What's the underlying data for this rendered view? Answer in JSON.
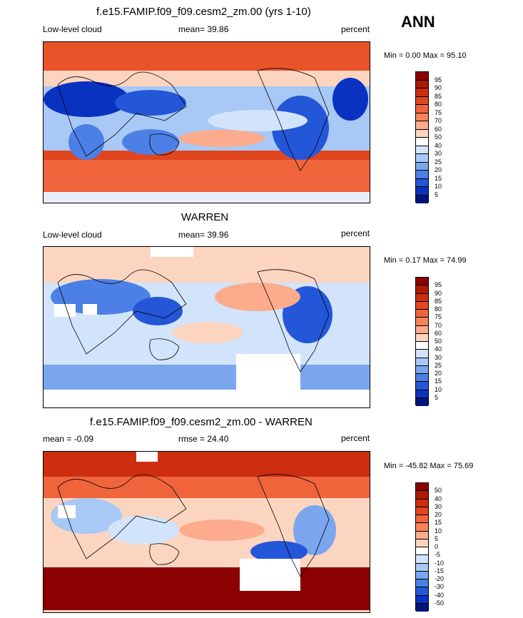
{
  "season": "ANN",
  "panels": [
    {
      "title": "f.e15.FAMIP.f09_f09.cesm2_zm.00 (yrs 1-10)",
      "left_label": "Low-level cloud",
      "center_label": "mean=  39.86",
      "right_label": "percent",
      "minmax": "Min =   0.00 Max =  95.10",
      "colorbar_labels": [
        "95",
        "90",
        "85",
        "80",
        "75",
        "70",
        "60",
        "50",
        "40",
        "30",
        "25",
        "20",
        "15",
        "10",
        "5"
      ],
      "colorbar_colors": [
        "#8b0000",
        "#b01800",
        "#cc2e0f",
        "#e0461f",
        "#f0643c",
        "#f8845c",
        "#fcab8c",
        "#fcd5c0",
        "#ffffff",
        "#d2e4fb",
        "#a8c8f5",
        "#7aa6ee",
        "#4d80e6",
        "#2456d8",
        "#0a32c0",
        "#00147a"
      ]
    },
    {
      "title": "WARREN",
      "left_label": "Low-level cloud",
      "center_label": "mean=  39.96",
      "right_label": "percent",
      "minmax": "Min =   0.17 Max =  74.99",
      "colorbar_labels": [
        "95",
        "90",
        "85",
        "80",
        "75",
        "70",
        "60",
        "50",
        "40",
        "30",
        "25",
        "20",
        "15",
        "10",
        "5"
      ],
      "colorbar_colors": [
        "#8b0000",
        "#b01800",
        "#cc2e0f",
        "#e0461f",
        "#f0643c",
        "#f8845c",
        "#fcab8c",
        "#fcd5c0",
        "#ffffff",
        "#d2e4fb",
        "#a8c8f5",
        "#7aa6ee",
        "#4d80e6",
        "#2456d8",
        "#0a32c0",
        "#00147a"
      ]
    },
    {
      "title": "f.e15.FAMIP.f09_f09.cesm2_zm.00 - WARREN",
      "left_label": "mean =  -0.09",
      "center_label": "rmse =  24.40",
      "right_label": "percent",
      "minmax": "Min = -45.82 Max =  75.69",
      "colorbar_labels": [
        "50",
        "40",
        "30",
        "20",
        "15",
        "10",
        "5",
        "0",
        "-5",
        "-10",
        "-15",
        "-20",
        "-30",
        "-40",
        "-50"
      ],
      "colorbar_colors": [
        "#8b0000",
        "#b01800",
        "#cc2e0f",
        "#e0461f",
        "#f0643c",
        "#f8845c",
        "#fcab8c",
        "#fcd5c0",
        "#ffffff",
        "#d2e4fb",
        "#a8c8f5",
        "#7aa6ee",
        "#4d80e6",
        "#2456d8",
        "#0a32c0",
        "#00147a"
      ]
    }
  ]
}
